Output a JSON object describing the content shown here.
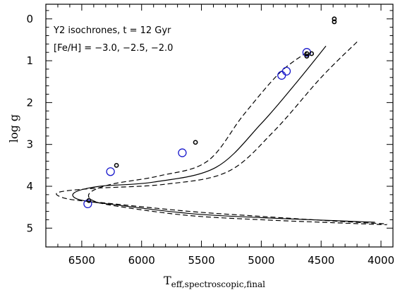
{
  "chart_data": {
    "type": "scatter",
    "annotations": [
      "Y2 isochrones, t = 12 Gyr",
      "[Fe/H] = −3.0, −2.5, −2.0"
    ],
    "xlabel_main": "T",
    "xlabel_sub": "eff,spectroscopic,final",
    "ylabel": "log  g",
    "xlim": [
      6800,
      3900
    ],
    "ylim": [
      5.45,
      -0.35
    ],
    "x_reversed": true,
    "y_reversed": true,
    "xticks_labeled": [
      6500,
      6000,
      5500,
      5000,
      4500,
      4000
    ],
    "yticks_labeled": [
      0,
      1,
      2,
      3,
      4,
      5
    ],
    "colors": {
      "black_points": "#000000",
      "blue_points": "#1a1acc",
      "lines": "#000000"
    },
    "series": [
      {
        "style": "solid",
        "x": [
          4460,
          4700,
          5000,
          5380,
          5900,
          6350,
          6560,
          6520,
          6200,
          5600,
          5000,
          4400,
          4050
        ],
        "y": [
          0.65,
          1.5,
          2.5,
          3.55,
          3.9,
          4.0,
          4.15,
          4.32,
          4.45,
          4.65,
          4.75,
          4.82,
          4.86
        ]
      },
      {
        "style": "dashed",
        "x": [
          4200,
          4500,
          4900,
          5280,
          5800,
          6400,
          6700,
          6620,
          6300,
          5600,
          5000,
          4400,
          3950
        ],
        "y": [
          0.55,
          1.4,
          2.7,
          3.65,
          3.95,
          4.05,
          4.15,
          4.3,
          4.4,
          4.6,
          4.72,
          4.83,
          4.9
        ]
      },
      {
        "style": "dashed",
        "x": [
          4620,
          4850,
          5150,
          5450,
          5850,
          6250,
          6430,
          6400,
          6150,
          5600,
          5000,
          4400,
          3950
        ],
        "y": [
          0.8,
          1.3,
          2.3,
          3.4,
          3.75,
          3.95,
          4.15,
          4.35,
          4.5,
          4.7,
          4.8,
          4.87,
          4.92
        ]
      }
    ],
    "points_black": [
      {
        "x": 4390,
        "y": 0.0
      },
      {
        "x": 4390,
        "y": 0.07
      },
      {
        "x": 4620,
        "y": 0.83
      },
      {
        "x": 4580,
        "y": 0.83
      },
      {
        "x": 4620,
        "y": 0.89
      },
      {
        "x": 5550,
        "y": 2.95
      },
      {
        "x": 6210,
        "y": 3.5
      },
      {
        "x": 6440,
        "y": 4.34
      }
    ],
    "points_blue": [
      {
        "x": 4620,
        "y": 0.8
      },
      {
        "x": 4790,
        "y": 1.25
      },
      {
        "x": 4830,
        "y": 1.35
      },
      {
        "x": 5660,
        "y": 3.2
      },
      {
        "x": 6260,
        "y": 3.65
      },
      {
        "x": 6450,
        "y": 4.42
      }
    ]
  }
}
